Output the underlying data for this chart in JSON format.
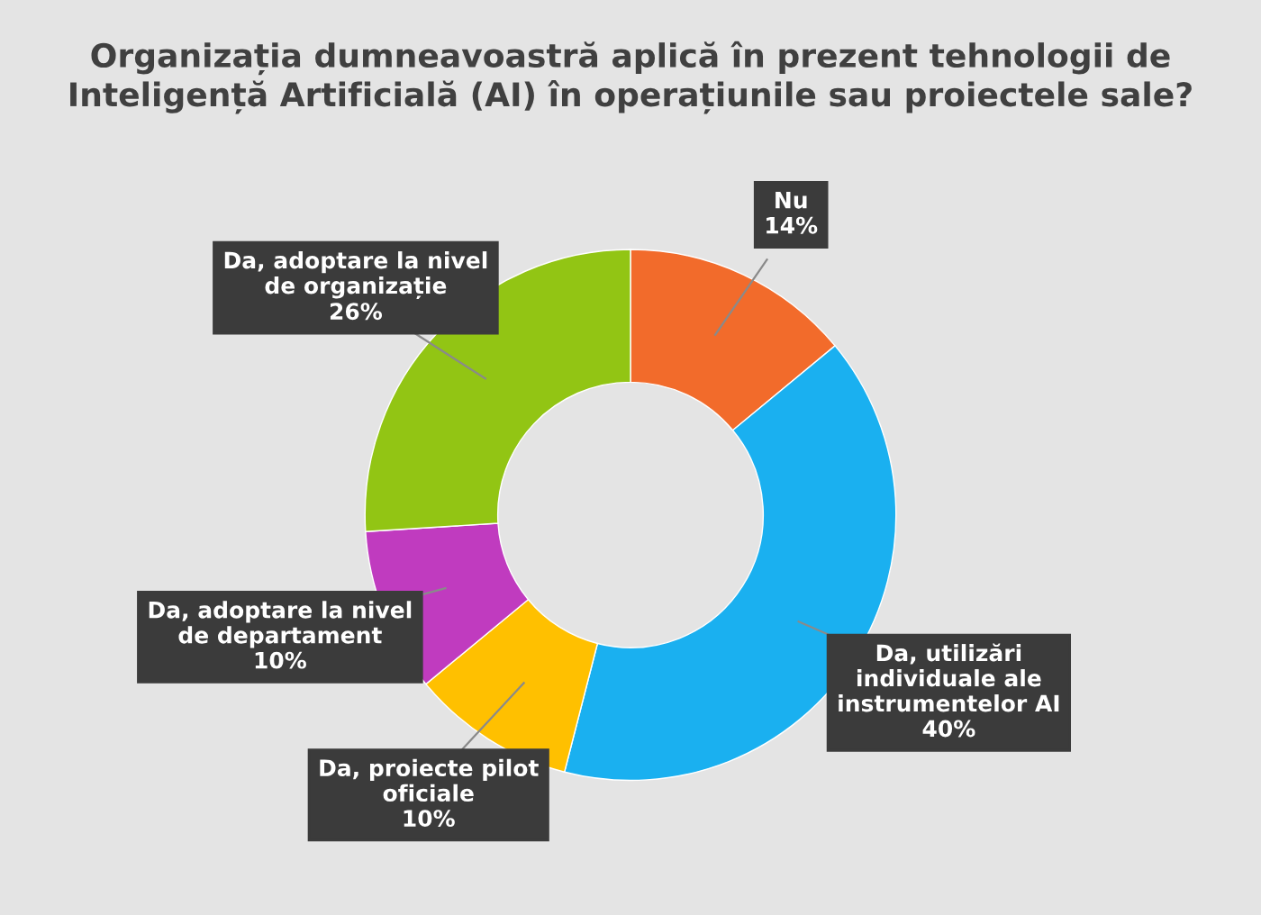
{
  "chart_data": {
    "type": "donut",
    "title": "Organizația dumneavoastră aplică în prezent tehnologii de Inteligență Artificială (AI) în operațiunile sau proiectele sale?",
    "categories": [
      "Nu",
      "Da, utilizări individuale ale instrumentelor AI",
      "Da, proiecte pilot oficiale",
      "Da, adoptare la nivel de departament",
      "Da, adoptare la nivel de organizație"
    ],
    "values": [
      14,
      40,
      10,
      10,
      26
    ],
    "colors": [
      "#f26b2b",
      "#1ab0f0",
      "#ffc000",
      "#c03bbf",
      "#92c514"
    ],
    "value_labels": [
      "14%",
      "40%",
      "10%",
      "10%",
      "26%"
    ],
    "legend": false
  }
}
